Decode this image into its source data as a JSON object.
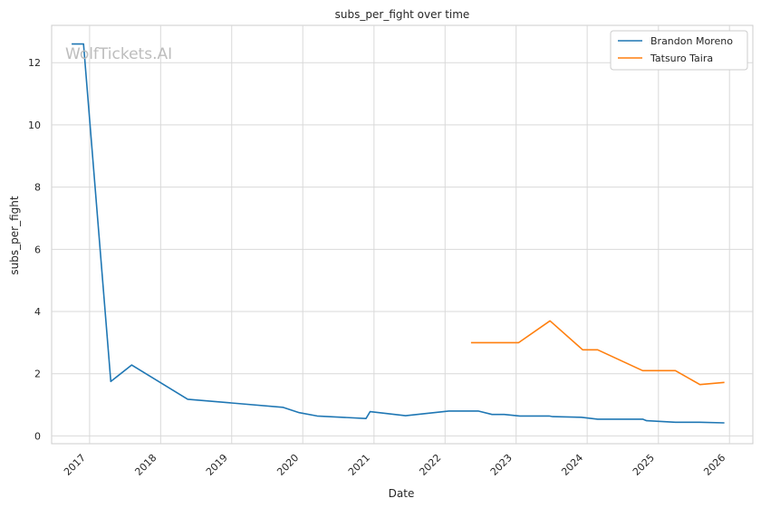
{
  "chart_data": {
    "type": "line",
    "title": "subs_per_fight over time",
    "xlabel": "Date",
    "ylabel": "subs_per_fight",
    "watermark": "WolfTickets.AI",
    "x_ticks": [
      "2017",
      "2018",
      "2019",
      "2020",
      "2021",
      "2022",
      "2023",
      "2024",
      "2025",
      "2026"
    ],
    "y_ticks": [
      0,
      2,
      4,
      6,
      8,
      10,
      12
    ],
    "xlim": [
      "2016-06-20",
      "2026-05-01"
    ],
    "ylim": [
      -0.25,
      13.2
    ],
    "grid": true,
    "legend_position": "top-right",
    "series": [
      {
        "name": "Brandon Moreno",
        "color": "#1f77b4",
        "points": [
          [
            "2016-10-01",
            12.6
          ],
          [
            "2016-12-01",
            12.6
          ],
          [
            "2017-04-20",
            1.75
          ],
          [
            "2017-08-05",
            2.28
          ],
          [
            "2018-05-20",
            1.18
          ],
          [
            "2019-09-20",
            0.92
          ],
          [
            "2019-12-14",
            0.75
          ],
          [
            "2020-03-15",
            0.64
          ],
          [
            "2020-11-21",
            0.56
          ],
          [
            "2020-12-12",
            0.78
          ],
          [
            "2021-06-12",
            0.65
          ],
          [
            "2022-01-20",
            0.8
          ],
          [
            "2022-06-20",
            0.8
          ],
          [
            "2022-08-30",
            0.69
          ],
          [
            "2022-11-01",
            0.69
          ],
          [
            "2023-01-20",
            0.64
          ],
          [
            "2023-06-20",
            0.64
          ],
          [
            "2023-07-08",
            0.62
          ],
          [
            "2023-12-01",
            0.6
          ],
          [
            "2024-02-24",
            0.54
          ],
          [
            "2024-10-12",
            0.54
          ],
          [
            "2024-11-01",
            0.49
          ],
          [
            "2025-03-29",
            0.44
          ],
          [
            "2025-08-01",
            0.44
          ],
          [
            "2025-12-06",
            0.42
          ]
        ]
      },
      {
        "name": "Tatsuro Taira",
        "color": "#ff7f0e",
        "points": [
          [
            "2022-05-14",
            3.0
          ],
          [
            "2022-10-15",
            3.0
          ],
          [
            "2023-01-14",
            3.0
          ],
          [
            "2023-06-24",
            3.7
          ],
          [
            "2023-12-09",
            2.77
          ],
          [
            "2024-02-24",
            2.77
          ],
          [
            "2024-10-12",
            2.1
          ],
          [
            "2025-03-29",
            2.1
          ],
          [
            "2025-08-02",
            1.65
          ],
          [
            "2025-12-06",
            1.72
          ]
        ]
      }
    ]
  }
}
